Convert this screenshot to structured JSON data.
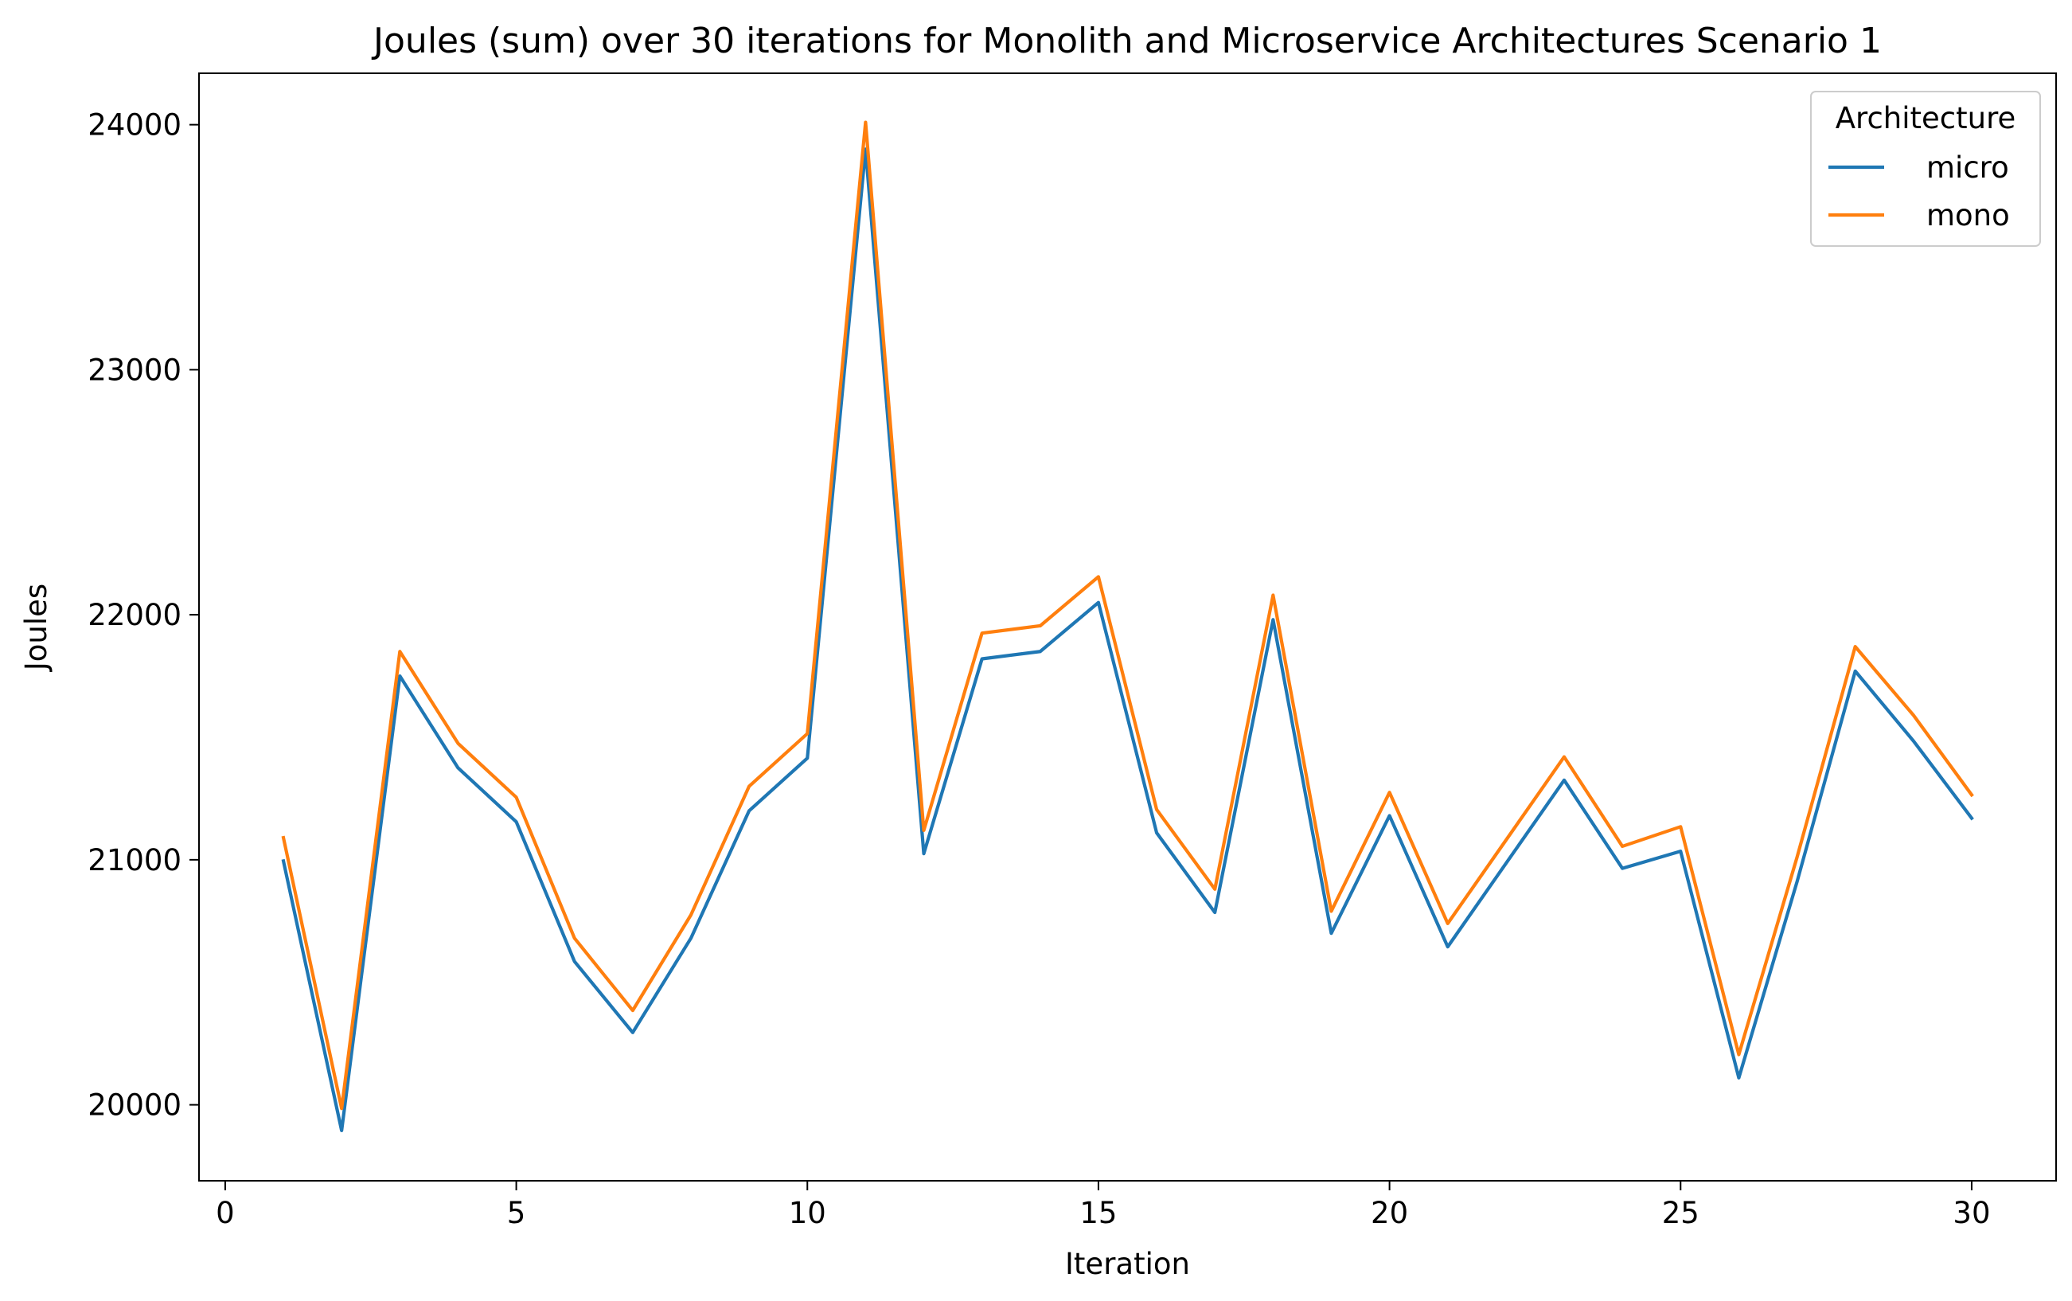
{
  "chart_data": {
    "type": "line",
    "title": "Joules (sum) over 30 iterations for Monolith and Microservice Architectures Scenario 1",
    "xlabel": "Iteration",
    "ylabel": "Joules",
    "xlim": [
      -0.45,
      31.45
    ],
    "ylim": [
      19690,
      24210
    ],
    "xticks": [
      0,
      5,
      10,
      15,
      20,
      25,
      30
    ],
    "yticks": [
      20000,
      21000,
      22000,
      23000,
      24000
    ],
    "grid": false,
    "legend": {
      "title": "Architecture",
      "placement": "top-right"
    },
    "x": [
      1,
      2,
      3,
      4,
      5,
      6,
      7,
      8,
      9,
      10,
      11,
      12,
      13,
      14,
      15,
      16,
      17,
      18,
      19,
      20,
      21,
      22,
      23,
      24,
      25,
      26,
      27,
      28,
      29,
      30
    ],
    "series": [
      {
        "name": "micro",
        "color": "#1f77b4",
        "values": [
          20995,
          19895,
          21750,
          21375,
          21155,
          20585,
          20295,
          20680,
          21200,
          21415,
          23900,
          21025,
          21820,
          21850,
          22050,
          21110,
          20785,
          21980,
          20700,
          21180,
          20645,
          20985,
          21325,
          20965,
          21035,
          20110,
          20910,
          21770,
          21485,
          21170
        ]
      },
      {
        "name": "mono",
        "color": "#ff7f0e",
        "values": [
          21090,
          19985,
          21850,
          21475,
          21255,
          20680,
          20385,
          20775,
          21300,
          21515,
          24010,
          21120,
          21925,
          21955,
          22155,
          21205,
          20880,
          22080,
          20790,
          21275,
          20740,
          21080,
          21420,
          21055,
          21135,
          20205,
          21010,
          21870,
          21590,
          21265
        ]
      }
    ]
  }
}
